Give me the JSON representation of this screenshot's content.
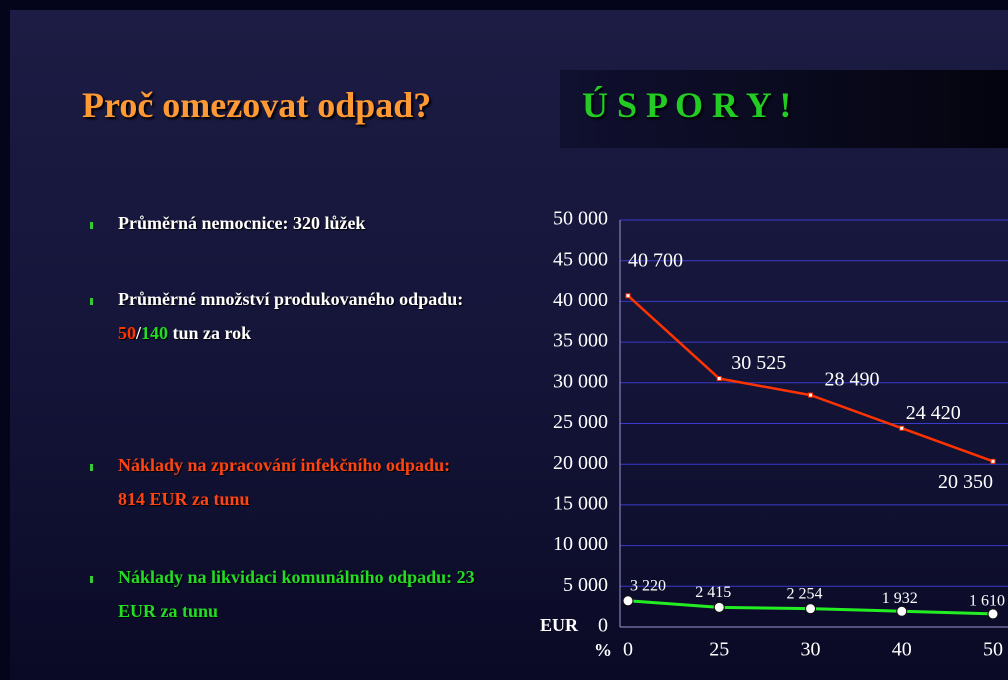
{
  "slide": {
    "title": "Proč omezovat odpad?",
    "subtitle": "Ú S P O R Y !",
    "bullets": [
      {
        "parts": [
          {
            "text": "Průměrná nemocnice: 320 lůžek",
            "color": "#ffffff"
          }
        ]
      },
      {
        "parts": [
          {
            "text": "Průměrné množství produkovaného odpadu: ",
            "color": "#ffffff"
          },
          {
            "text": "50",
            "color": "#ff3300"
          },
          {
            "text": "/",
            "color": "#ffffff"
          },
          {
            "text": "140",
            "color": "#22dd22"
          },
          {
            "text": " tun za rok",
            "color": "#ffffff"
          }
        ]
      },
      {
        "parts": [
          {
            "text": "Náklady na zpracování infekčního odpadu: 814 EUR za tunu",
            "color": "#ff4411"
          }
        ]
      },
      {
        "parts": [
          {
            "text": "Náklady na likvidaci komunálního odpadu: 23 EUR za tunu",
            "color": "#22dd22"
          }
        ]
      }
    ]
  },
  "chart_data": {
    "type": "line",
    "x_label": "%",
    "y_label": "EUR",
    "categories": [
      "0",
      "25",
      "30",
      "40",
      "50"
    ],
    "series": [
      {
        "name": null,
        "color": "#ff3300",
        "values": [
          40700,
          30525,
          28490,
          24420,
          20350
        ],
        "value_labels": [
          "40 700",
          "30 525",
          "28 490",
          "24 420",
          "20 350"
        ]
      },
      {
        "name": null,
        "color": "#22ee22",
        "values": [
          3220,
          2415,
          2254,
          1932,
          1610
        ],
        "value_labels": [
          "3 220",
          "2 415",
          "2 254",
          "1 932",
          "1 610"
        ]
      }
    ],
    "ylim": [
      0,
      50000
    ],
    "yticks": [
      0,
      {
        "value": 5000,
        "label": "5 000"
      },
      {
        "value": 10000,
        "label": "10 000"
      },
      {
        "value": 15000,
        "label": "15 000"
      },
      {
        "value": 20000,
        "label": "20 000"
      },
      {
        "value": 25000,
        "label": "25 000"
      },
      {
        "value": 30000,
        "label": "30 000"
      },
      {
        "value": 35000,
        "label": "35 000"
      },
      {
        "value": 40000,
        "label": "40 000"
      },
      {
        "value": 45000,
        "label": "45 000"
      },
      {
        "value": 50000,
        "label": "50 000"
      }
    ],
    "grid": true
  }
}
